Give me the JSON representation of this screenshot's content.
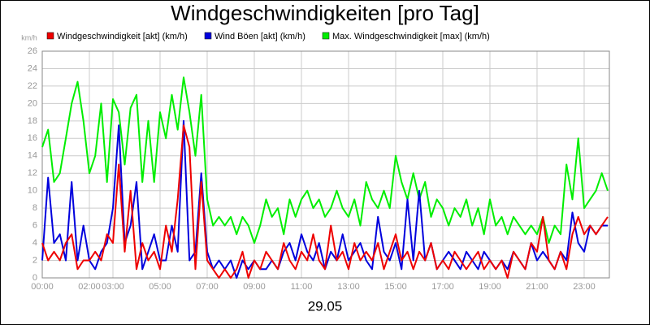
{
  "chart_data": {
    "type": "line",
    "title": "Windgeschwindigkeiten [pro Tag]",
    "y_unit": "km/h",
    "x_label": "29.05",
    "xlim": [
      0,
      24.07
    ],
    "ylim": [
      0,
      26
    ],
    "grid": true,
    "legend": "top",
    "xticks": [
      {
        "value": 0,
        "label": "00:00"
      },
      {
        "value": 2,
        "label": "02:00"
      },
      {
        "value": 3,
        "label": "03:00"
      },
      {
        "value": 5,
        "label": "05:00"
      },
      {
        "value": 7,
        "label": "07:00"
      },
      {
        "value": 9,
        "label": "09:00"
      },
      {
        "value": 11,
        "label": "11:00"
      },
      {
        "value": 13,
        "label": "13:00"
      },
      {
        "value": 15,
        "label": "15:00"
      },
      {
        "value": 17,
        "label": "17:00"
      },
      {
        "value": 19,
        "label": "19:00"
      },
      {
        "value": 21,
        "label": "21:00"
      },
      {
        "value": 23,
        "label": "23:00"
      }
    ],
    "yticks": [
      0,
      2,
      4,
      6,
      8,
      10,
      12,
      14,
      16,
      18,
      20,
      22,
      24,
      26
    ],
    "x": [
      0,
      0.25,
      0.5,
      0.75,
      1,
      1.25,
      1.5,
      1.75,
      2,
      2.25,
      2.5,
      2.75,
      3,
      3.25,
      3.5,
      3.75,
      4,
      4.25,
      4.5,
      4.75,
      5,
      5.25,
      5.5,
      5.75,
      6,
      6.25,
      6.5,
      6.75,
      7,
      7.25,
      7.5,
      7.75,
      8,
      8.25,
      8.5,
      8.75,
      9,
      9.25,
      9.5,
      9.75,
      10,
      10.25,
      10.5,
      10.75,
      11,
      11.25,
      11.5,
      11.75,
      12,
      12.25,
      12.5,
      12.75,
      13,
      13.25,
      13.5,
      13.75,
      14,
      14.25,
      14.5,
      14.75,
      15,
      15.25,
      15.5,
      15.75,
      16,
      16.25,
      16.5,
      16.75,
      17,
      17.25,
      17.5,
      17.75,
      18,
      18.25,
      18.5,
      18.75,
      19,
      19.25,
      19.5,
      19.75,
      20,
      20.25,
      20.5,
      20.75,
      21,
      21.25,
      21.5,
      21.75,
      22,
      22.25,
      22.5,
      22.75,
      23,
      23.25,
      23.5,
      23.75,
      24
    ],
    "series": [
      {
        "name": "Max. Windgeschwindigkeit [max] (km/h)",
        "color": "#00ee00",
        "values": [
          15,
          17,
          11,
          12,
          16,
          20,
          22.5,
          18,
          12,
          14,
          20,
          11,
          20.5,
          19,
          13,
          19.5,
          21,
          11,
          18,
          11,
          19,
          16,
          21,
          17,
          23,
          19,
          14,
          21,
          9,
          6,
          7,
          6,
          7,
          5,
          7,
          6,
          4,
          6,
          9,
          7,
          8,
          5,
          9,
          7,
          9,
          10,
          8,
          9,
          7,
          8,
          10,
          8,
          7,
          9,
          6,
          11,
          9,
          8,
          10,
          8,
          14,
          11,
          9,
          12,
          9,
          11,
          7,
          9,
          8,
          6,
          8,
          7,
          9,
          6,
          8,
          5,
          9,
          6,
          7,
          5,
          7,
          6,
          5,
          6,
          5,
          7,
          4,
          6,
          5,
          13,
          9,
          16,
          8,
          9,
          10,
          12,
          10
        ]
      },
      {
        "name": "Wind Böen [akt] (km/h)",
        "color": "#0000dd",
        "values": [
          2,
          11.5,
          4,
          5,
          2,
          11,
          2,
          6,
          2,
          1,
          3,
          4,
          8,
          17.5,
          4,
          6,
          11,
          1,
          3,
          5,
          2,
          2,
          6,
          3,
          18,
          2,
          3,
          12,
          3,
          1,
          2,
          1,
          2,
          0,
          2,
          1,
          2,
          1,
          1,
          2,
          1,
          3,
          4,
          2,
          5,
          3,
          2,
          4,
          1,
          3,
          2,
          5,
          2,
          3,
          4,
          2,
          1,
          7,
          3,
          2,
          4,
          1,
          9,
          2,
          10,
          2,
          4,
          1,
          2,
          3,
          2,
          1,
          3,
          2,
          1,
          3,
          2,
          1,
          2,
          1,
          3,
          2,
          1,
          4,
          2,
          3,
          2,
          1,
          3,
          2,
          7.5,
          4,
          3,
          6,
          5,
          6,
          6
        ]
      },
      {
        "name": "Windgeschwindigkeit [akt] (km/h)",
        "color": "#ee0000",
        "values": [
          4,
          2,
          3,
          2,
          4,
          5,
          1,
          2,
          2,
          3,
          2,
          5,
          4,
          13,
          3,
          10,
          1,
          4,
          2,
          3,
          1,
          6,
          3,
          9,
          17.5,
          15,
          1,
          11,
          2,
          1,
          0,
          1,
          0,
          1,
          3,
          0,
          2,
          1,
          3,
          2,
          1,
          4,
          2,
          1,
          3,
          2,
          5,
          2,
          1,
          6,
          2,
          3,
          1,
          4,
          2,
          3,
          2,
          4,
          1,
          3,
          5,
          2,
          3,
          1,
          3,
          2,
          4,
          1,
          2,
          1,
          3,
          2,
          1,
          2,
          3,
          1,
          2,
          1,
          2,
          0,
          3,
          2,
          1,
          4,
          3,
          7,
          2,
          1,
          3,
          1,
          5,
          7,
          5,
          6,
          5,
          6,
          7
        ]
      }
    ]
  }
}
